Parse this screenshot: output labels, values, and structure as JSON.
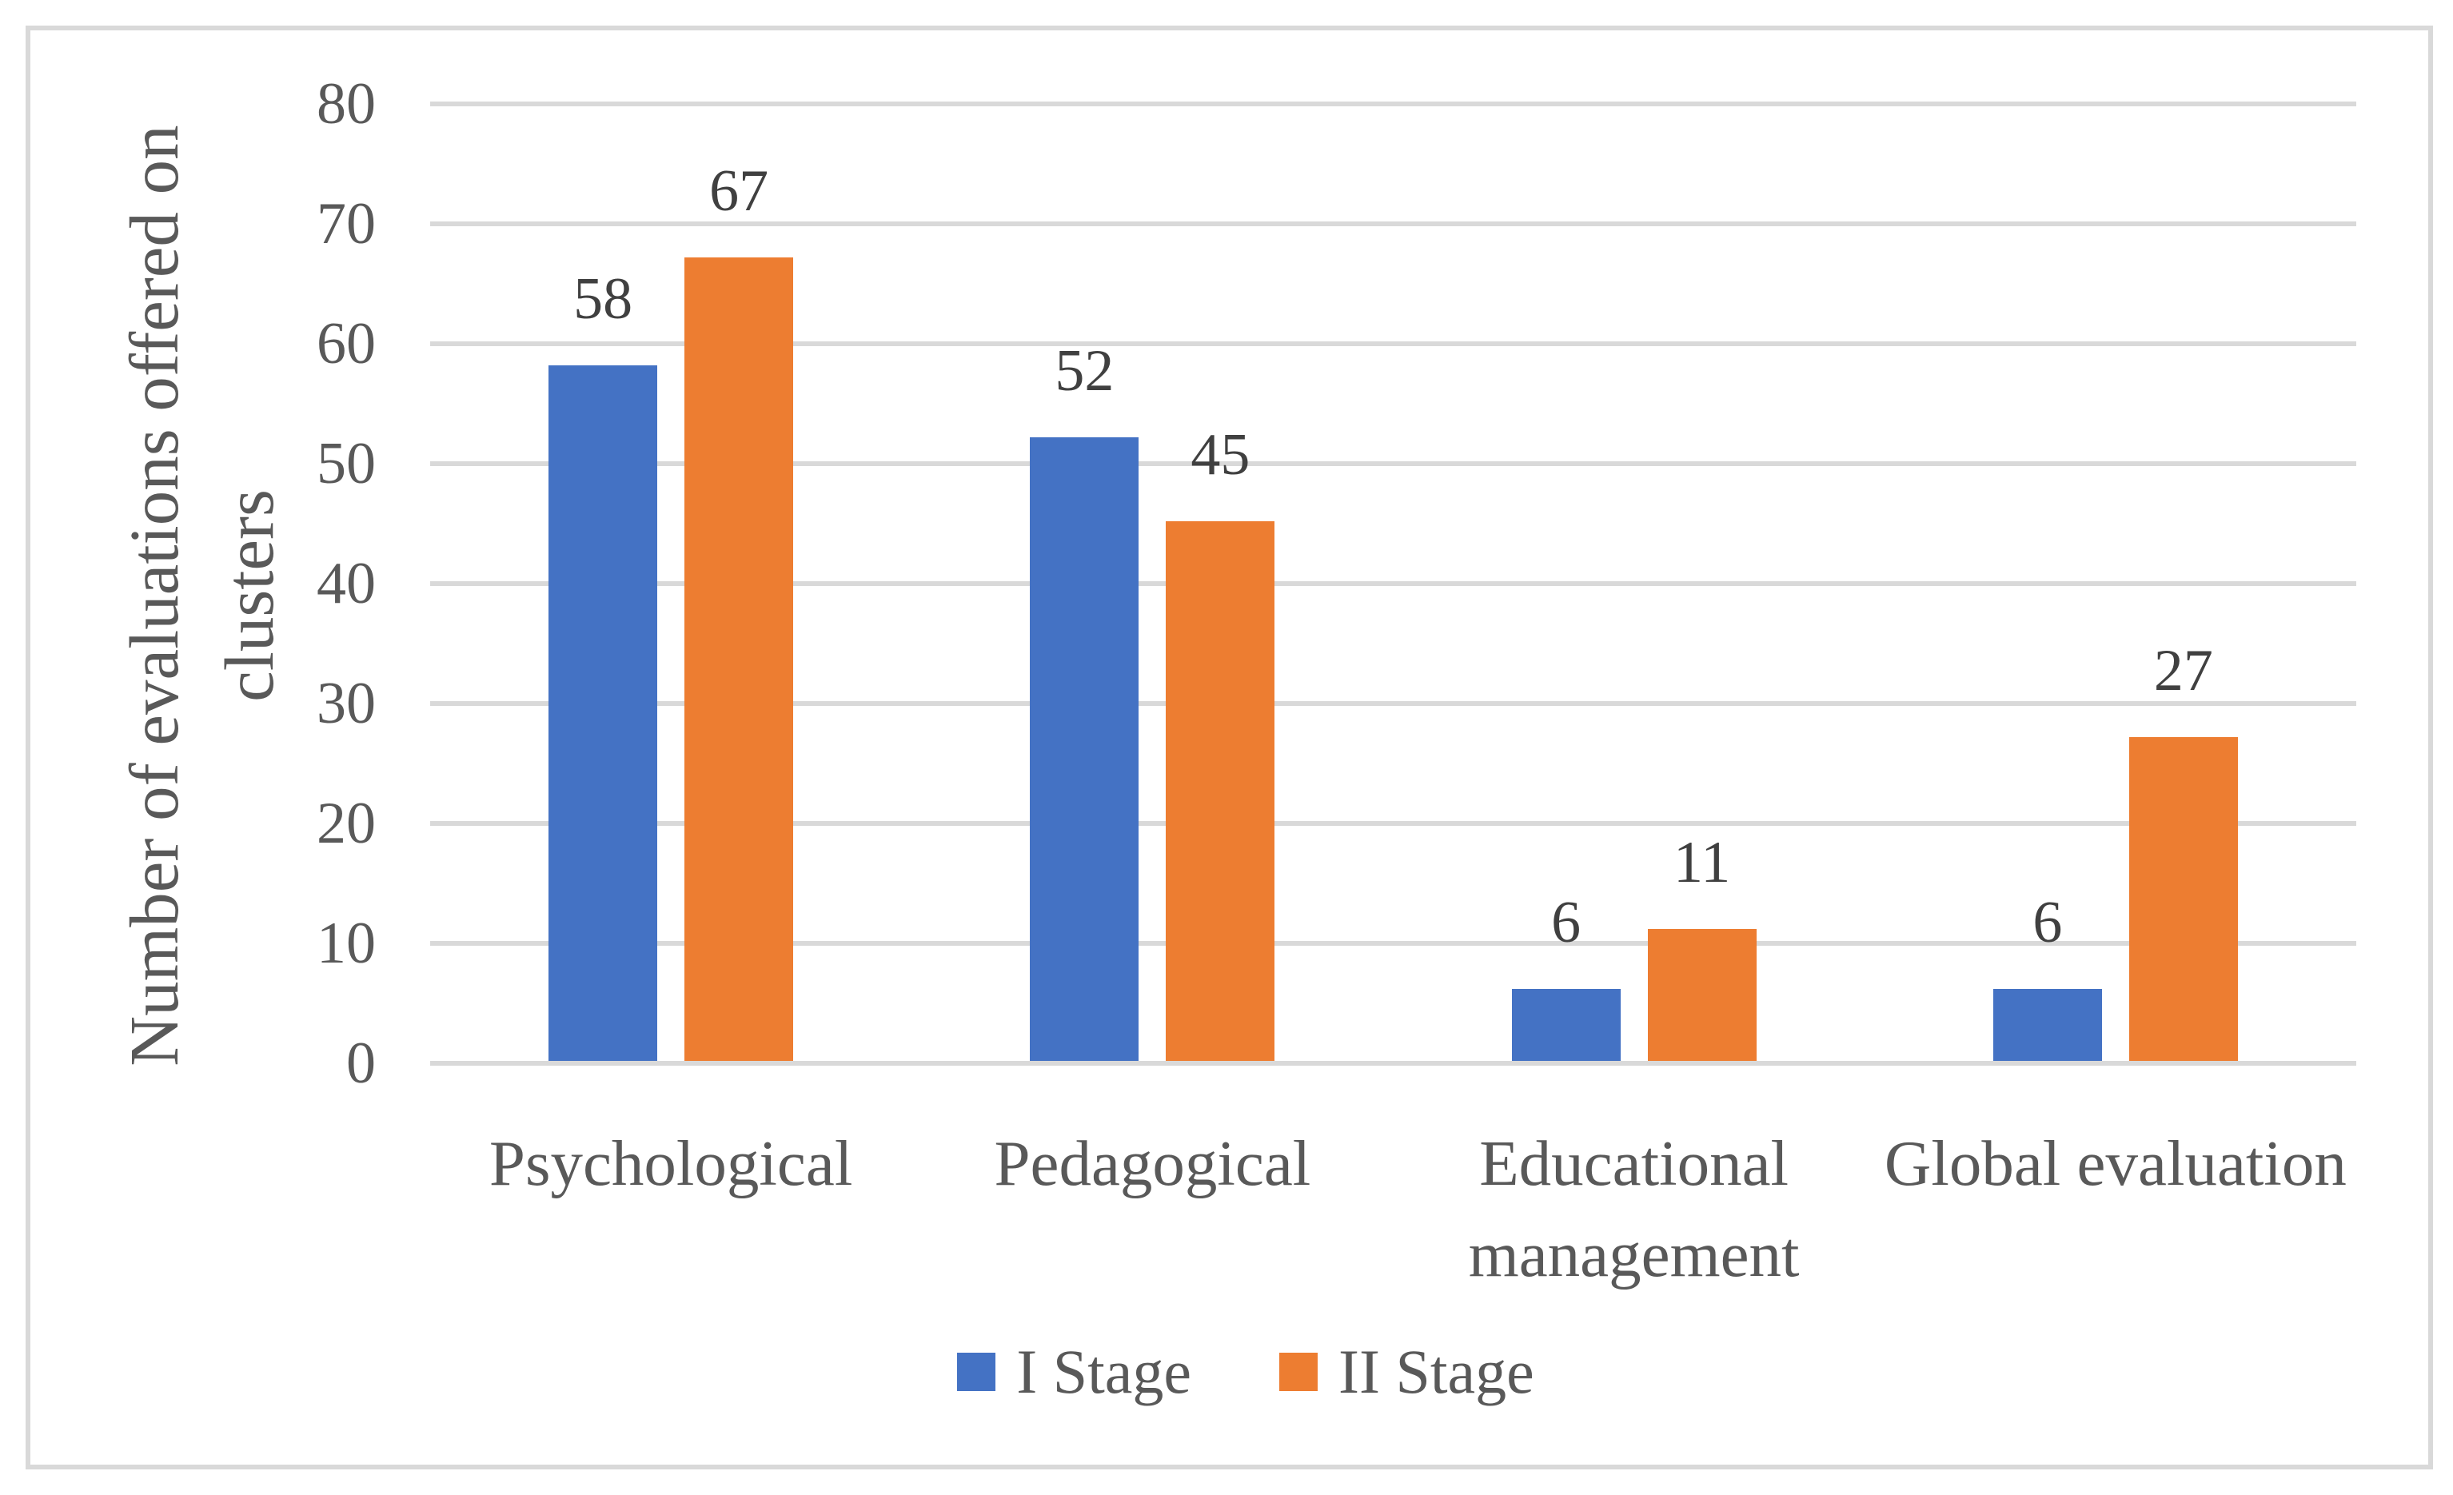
{
  "figure": {
    "background": "#FFFFFF",
    "border_color": "#D9D9D9"
  },
  "chart_data": {
    "type": "bar",
    "title": "",
    "categories": [
      "Psychological",
      "Pedagogical",
      "Educational management",
      "Global evaluation"
    ],
    "series": [
      {
        "name": "I Stage",
        "color": "#4472C4",
        "values": [
          58,
          52,
          6,
          6
        ]
      },
      {
        "name": "II Stage",
        "color": "#ED7D31",
        "values": [
          67,
          45,
          11,
          27
        ]
      }
    ],
    "data_labels": [
      [
        58,
        52,
        6,
        6
      ],
      [
        67,
        45,
        11,
        27
      ]
    ],
    "ylabel": "Number of evaluations offered on clusters",
    "ylabel_lines": [
      "Number of evaluations offered on",
      "clusters"
    ],
    "ylim": [
      0,
      80
    ],
    "yticks": [
      0,
      10,
      20,
      30,
      40,
      50,
      60,
      70,
      80
    ],
    "grid": "horizontal",
    "gridline_color": "#D9D9D9",
    "axis_text_color": "#595959",
    "data_label_color": "#404040",
    "data_labels_visible": true,
    "legend_position": "bottom"
  }
}
